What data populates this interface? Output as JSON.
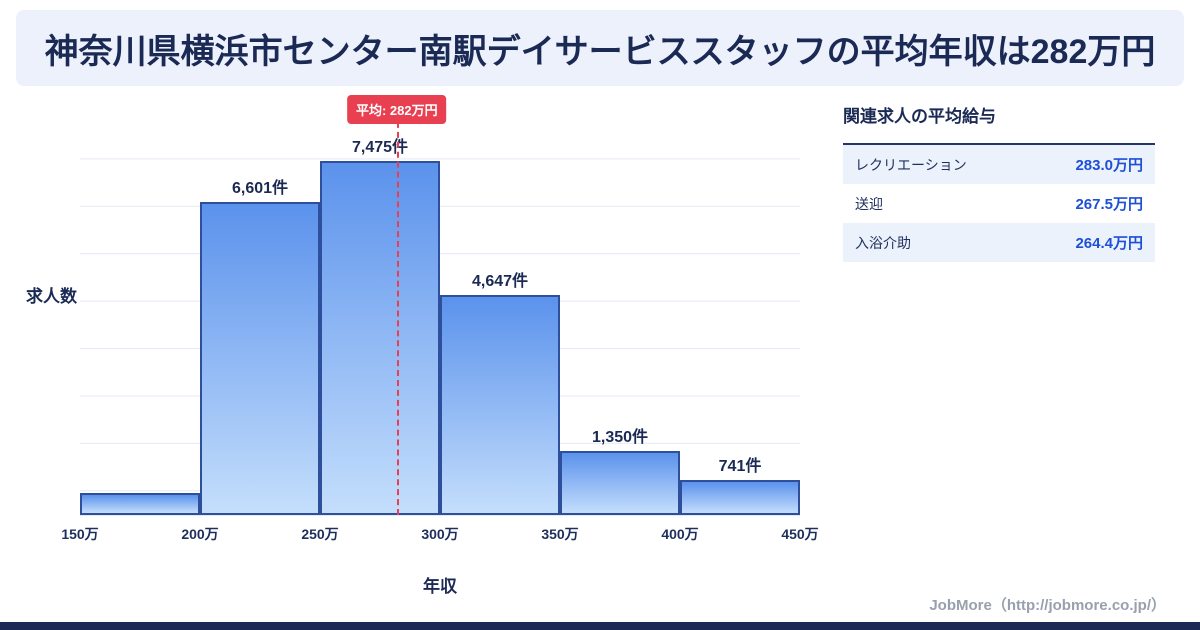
{
  "header": {
    "title": "神奈川県横浜市センター南駅デイサービススタッフの平均年収は282万円"
  },
  "chart_data": {
    "type": "bar",
    "ylabel": "求人数",
    "xlabel": "年収",
    "categories": [
      "150万",
      "200万",
      "250万",
      "300万",
      "350万",
      "400万",
      "450万"
    ],
    "values": [
      460,
      6601,
      7475,
      4647,
      1350,
      741
    ],
    "bar_labels": [
      "",
      "6,601件",
      "7,475件",
      "4,647件",
      "1,350件",
      "741件"
    ],
    "x_range": [
      150,
      450
    ],
    "bin_width": 50,
    "ylim": [
      0,
      8500
    ],
    "gridline_interval": 1000,
    "grid": "horizontal",
    "average": {
      "value": 282,
      "label": "平均: 282万円"
    }
  },
  "side_panel": {
    "title": "関連求人の平均給与",
    "rows": [
      {
        "label": "レクリエーション",
        "value": "283.0万円"
      },
      {
        "label": "送迎",
        "value": "267.5万円"
      },
      {
        "label": "入浴介助",
        "value": "264.4万円"
      }
    ]
  },
  "footer": {
    "credit": "JobMore（http://jobmore.co.jp/）"
  },
  "colors": {
    "banner_bg": "#edf1fb",
    "navy_text": "#1b2a55",
    "bar_border": "#2e4f9c",
    "bar_gradient_top": "#5b92ec",
    "bar_gradient_bottom": "#c4defc",
    "accent_red": "#e84050",
    "value_blue": "#1d4fd7",
    "grid_line": "#e4eaf3",
    "credit_gray": "#98a0ad",
    "footer_bar": "#1b2a55"
  }
}
